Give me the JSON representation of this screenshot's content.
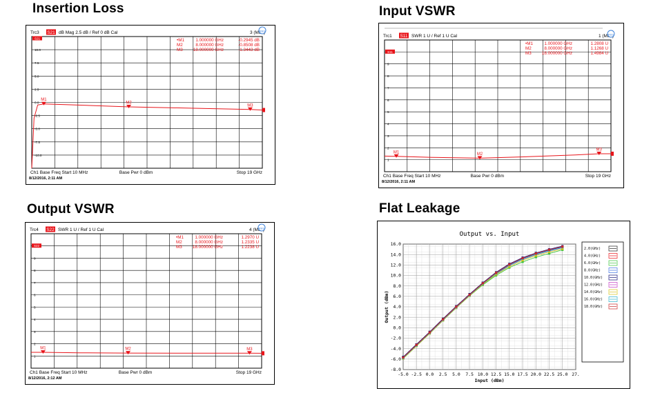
{
  "titles": {
    "insertion_loss": "Insertion Loss",
    "input_vswr": "Input VSWR",
    "output_vswr": "Output VSWR",
    "flat_leakage": "Flat Leakage"
  },
  "colors": {
    "trace_red": "#e8141a",
    "grid": "#000000",
    "badge_red": "#e8141a"
  },
  "panels": [
    {
      "key": "il",
      "trc": "Trc3",
      "param": "S21",
      "scale": "dB Mag  2.5 dB /  Ref 0 dB    Cal",
      "max": "3 (Max)",
      "markers_text": [
        [
          "•M1",
          "1.000000  GHz",
          "-0.2945 dB"
        ],
        [
          "M2",
          "8.000000  GHz",
          "-0.8508 dB"
        ],
        [
          "M3",
          "18.000000  GHz",
          "-1.3443 dB"
        ]
      ],
      "footer_left": "Ch1   Base Freq  Start  10 MHz",
      "footer_mid": "Base Pwr   0 dBm",
      "footer_right": "Stop  19 GHz",
      "datetime": "8/12/2016, 2:11 AM"
    },
    {
      "key": "in",
      "trc": "Trc1",
      "param": "S11",
      "scale": "SWR  1 U /  Ref 1 U     Cal",
      "max": "1 (Max)",
      "markers_text": [
        [
          "•M1",
          "1.000000  GHz",
          "1.2808 U"
        ],
        [
          "M2",
          "8.000000  GHz",
          "1.1268 U"
        ],
        [
          "M3",
          "18.000000  GHz",
          "1.4984 U"
        ]
      ],
      "footer_left": "Ch1   Base Freq   Start  10 MHz",
      "footer_mid": "Base Pwr   0 dBm",
      "footer_right": "Stop  19 GHz",
      "datetime": "8/12/2016, 2:11 AM"
    },
    {
      "key": "out",
      "trc": "Trc4",
      "param": "S22",
      "scale": "SWR  1 U /  Ref 1 U     Cal",
      "max": "4 (Max)",
      "markers_text": [
        [
          "•M1",
          "1.000000  GHz",
          "1.2970 U"
        ],
        [
          "M2",
          "8.000000  GHz",
          "1.2335 U"
        ],
        [
          "M3",
          "18.000000  GHz",
          "1.2238 U"
        ]
      ],
      "footer_left": "Ch1   Base Freq  Start  10 MHz",
      "footer_mid": "Base Pwr   0 dBm",
      "footer_right": "Stop  19 GHz",
      "datetime": "8/12/2016, 2:12 AM"
    }
  ],
  "chart_data": [
    {
      "type": "line",
      "name": "insertion_loss",
      "x_range_ghz": [
        0.01,
        19
      ],
      "ylim": [
        -12.5,
        12.5
      ],
      "yticks": [
        "10.0",
        "7.5",
        "5.0",
        "2.5",
        "0.0",
        "-2.5",
        "-5.0",
        "-7.5",
        "-10.0"
      ],
      "x": [
        0.01,
        0.2,
        0.5,
        1.0,
        3.0,
        5.0,
        8.0,
        11.0,
        14.0,
        16.0,
        18.0,
        19.0
      ],
      "y": [
        -12.5,
        -3.0,
        -0.5,
        -0.2945,
        -0.45,
        -0.6,
        -0.8508,
        -1.0,
        -1.15,
        -1.25,
        -1.3443,
        -1.45
      ],
      "markers": [
        {
          "label": "M1",
          "x": 1.0,
          "y": -0.2945
        },
        {
          "label": "M2",
          "x": 8.0,
          "y": -0.8508
        },
        {
          "label": "M3",
          "x": 18.0,
          "y": -1.3443
        }
      ]
    },
    {
      "type": "line",
      "name": "input_vswr",
      "x_range_ghz": [
        0.01,
        19
      ],
      "ylim": [
        0,
        11
      ],
      "yticks": [
        "10",
        "9",
        "8",
        "7",
        "6",
        "5",
        "4",
        "3",
        "2",
        "1"
      ],
      "x": [
        0.01,
        1.0,
        4.0,
        8.0,
        12.0,
        16.0,
        18.0,
        19.0
      ],
      "y": [
        1.3,
        1.2808,
        1.2,
        1.1268,
        1.25,
        1.4,
        1.4984,
        1.5
      ],
      "markers": [
        {
          "label": "M1",
          "x": 1.0,
          "y": 1.2808
        },
        {
          "label": "M2",
          "x": 8.0,
          "y": 1.1268
        },
        {
          "label": "M3",
          "x": 18.0,
          "y": 1.4984
        }
      ]
    },
    {
      "type": "line",
      "name": "output_vswr",
      "x_range_ghz": [
        0.01,
        19
      ],
      "ylim": [
        0,
        11
      ],
      "yticks": [
        "10",
        "9",
        "8",
        "7",
        "6",
        "5",
        "4",
        "3",
        "2",
        "1"
      ],
      "x": [
        0.01,
        1.0,
        4.0,
        8.0,
        12.0,
        16.0,
        18.0,
        19.0
      ],
      "y": [
        1.3,
        1.297,
        1.26,
        1.2335,
        1.23,
        1.225,
        1.2238,
        1.22
      ],
      "markers": [
        {
          "label": "M1",
          "x": 1.0,
          "y": 1.297
        },
        {
          "label": "M2",
          "x": 8.0,
          "y": 1.2335
        },
        {
          "label": "M3",
          "x": 18.0,
          "y": 1.2238
        }
      ]
    },
    {
      "type": "scatter",
      "name": "flat_leakage",
      "title": "Output vs. Input",
      "xlabel": "Input (dBm)",
      "ylabel": "Output (dBm)",
      "xlim": [
        -5.0,
        27.5
      ],
      "ylim": [
        -8.0,
        16.0
      ],
      "xticks": [
        "-5.0",
        "-2.5",
        "0.0",
        "2.5",
        "5.0",
        "7.5",
        "10.0",
        "12.5",
        "15.0",
        "17.5",
        "20.0",
        "22.5",
        "25.0",
        "27."
      ],
      "yticks": [
        "16.0",
        "14.0",
        "12.0",
        "10.0",
        "8.0",
        "6.0",
        "4.0",
        "2.0",
        "0.0",
        "-2.0",
        "-4.0",
        "-6.0",
        "-8.0"
      ],
      "x": [
        -5.0,
        -2.5,
        0.0,
        2.5,
        5.0,
        7.5,
        10.0,
        12.5,
        15.0,
        17.5,
        20.0,
        22.5,
        25.0
      ],
      "series": [
        {
          "name": "2.0(GHz)",
          "color": "#222222",
          "values": [
            -5.6,
            -3.2,
            -0.8,
            1.7,
            4.1,
            6.4,
            8.6,
            10.5,
            12.1,
            13.3,
            14.2,
            14.9,
            15.5
          ]
        },
        {
          "name": "4.0(GHz)",
          "color": "#e8141a",
          "values": [
            -5.7,
            -3.3,
            -0.9,
            1.6,
            4.0,
            6.3,
            8.5,
            10.4,
            12.0,
            13.2,
            14.1,
            14.8,
            15.4
          ]
        },
        {
          "name": "6.0(GHz)",
          "color": "#3cc43c",
          "values": [
            -5.9,
            -3.5,
            -1.1,
            1.4,
            3.8,
            6.1,
            8.2,
            10.0,
            11.5,
            12.6,
            13.5,
            14.2,
            14.9
          ]
        },
        {
          "name": "8.0(GHz)",
          "color": "#3b6fe0",
          "values": [
            -5.8,
            -3.4,
            -1.0,
            1.5,
            3.9,
            6.2,
            8.4,
            10.3,
            11.9,
            13.1,
            14.0,
            14.7,
            15.3
          ]
        },
        {
          "name": "10.0(GHz)",
          "color": "#111177",
          "values": [
            -5.6,
            -3.2,
            -0.8,
            1.7,
            4.1,
            6.4,
            8.6,
            10.6,
            12.2,
            13.4,
            14.3,
            15.0,
            15.6
          ]
        },
        {
          "name": "12.0(GHz)",
          "color": "#c23cc2",
          "values": [
            -5.7,
            -3.3,
            -0.9,
            1.6,
            4.0,
            6.3,
            8.5,
            10.5,
            12.1,
            13.3,
            14.2,
            14.9,
            15.5
          ]
        },
        {
          "name": "14.0(GHz)",
          "color": "#d8c21a",
          "values": [
            -5.9,
            -3.5,
            -1.1,
            1.4,
            3.8,
            6.1,
            8.3,
            10.2,
            11.7,
            12.9,
            13.8,
            14.5,
            15.1
          ]
        },
        {
          "name": "16.0(GHz)",
          "color": "#2ab0c8",
          "values": [
            -5.8,
            -3.4,
            -1.0,
            1.5,
            3.9,
            6.2,
            8.4,
            10.4,
            12.0,
            13.2,
            14.1,
            14.8,
            15.4
          ]
        },
        {
          "name": "18.0(GHz)",
          "color": "#c8282a",
          "values": [
            -5.7,
            -3.3,
            -0.9,
            1.6,
            4.0,
            6.3,
            8.5,
            10.5,
            12.1,
            13.3,
            14.2,
            14.9,
            15.5
          ]
        }
      ]
    }
  ]
}
